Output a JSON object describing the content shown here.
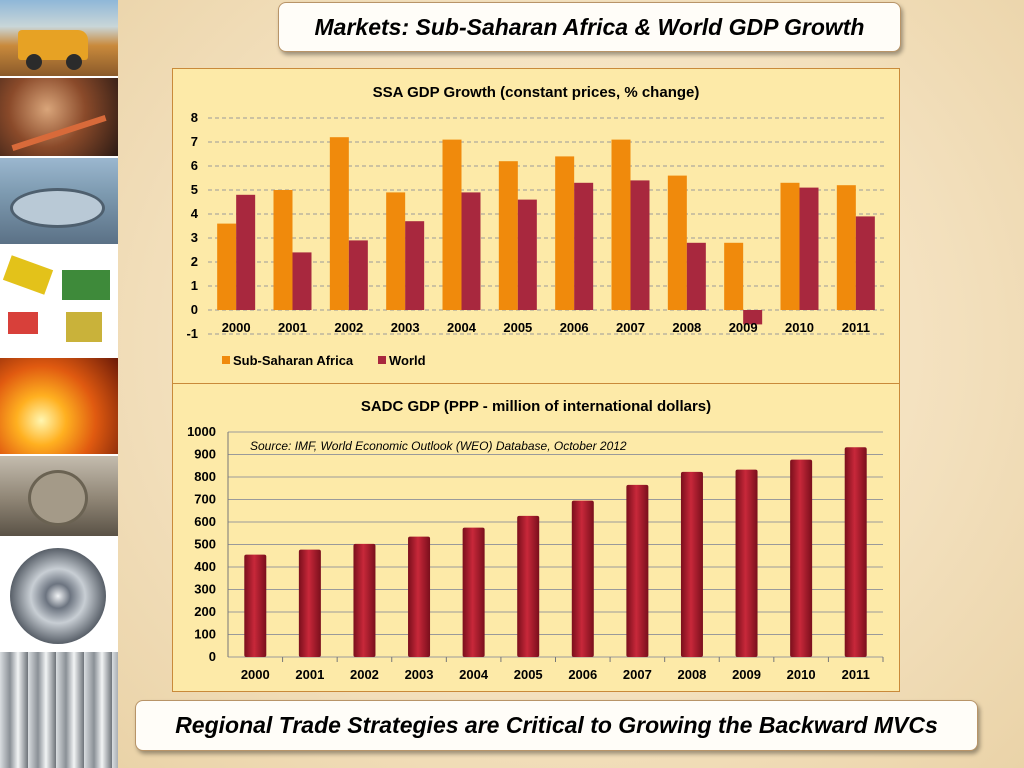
{
  "slide": {
    "title": "Markets: Sub-Saharan Africa & World GDP Growth",
    "footer": "Regional Trade Strategies are Critical to Growing the Backward MVCs"
  },
  "photos": [
    "mining-truck",
    "mine-shaft",
    "thickener-tank",
    "processing-equipment",
    "molten-metal-pouring",
    "grinding-mill",
    "steel-coil",
    "steel-pipes"
  ],
  "colors": {
    "ssa": "#f08a0c",
    "world": "#a8283e",
    "sadc_bar": "#b81c2c",
    "panel": "#fdeaa8",
    "grid": "#9a9a9a"
  },
  "chart_data": [
    {
      "type": "bar",
      "title": "SSA GDP Growth (constant prices, % change)",
      "categories": [
        "2000",
        "2001",
        "2002",
        "2003",
        "2004",
        "2005",
        "2006",
        "2007",
        "2008",
        "2009",
        "2010",
        "2011"
      ],
      "series": [
        {
          "name": "Sub-Saharan Africa",
          "values": [
            3.6,
            5.0,
            7.2,
            4.9,
            7.1,
            6.2,
            6.4,
            7.1,
            5.6,
            2.8,
            5.3,
            5.2
          ]
        },
        {
          "name": "World",
          "values": [
            4.8,
            2.4,
            2.9,
            3.7,
            4.9,
            4.6,
            5.3,
            5.4,
            2.8,
            -0.6,
            5.1,
            3.9
          ]
        }
      ],
      "ylim": [
        -1,
        8
      ],
      "yticks": [
        -1,
        0,
        1,
        2,
        3,
        4,
        5,
        6,
        7,
        8
      ],
      "grid": true,
      "legend": "bottom-left"
    },
    {
      "type": "bar",
      "title": "SADC GDP (PPP - million of international dollars)",
      "annotation": "Source: IMF, World Economic Outlook (WEO) Database, October 2012",
      "categories": [
        "2000",
        "2001",
        "2002",
        "2003",
        "2004",
        "2005",
        "2006",
        "2007",
        "2008",
        "2009",
        "2010",
        "2011"
      ],
      "values": [
        455,
        477,
        503,
        535,
        575,
        627,
        695,
        765,
        823,
        833,
        877,
        932
      ],
      "ylim": [
        0,
        1000
      ],
      "yticks": [
        0,
        100,
        200,
        300,
        400,
        500,
        600,
        700,
        800,
        900,
        1000
      ],
      "grid": true
    }
  ]
}
